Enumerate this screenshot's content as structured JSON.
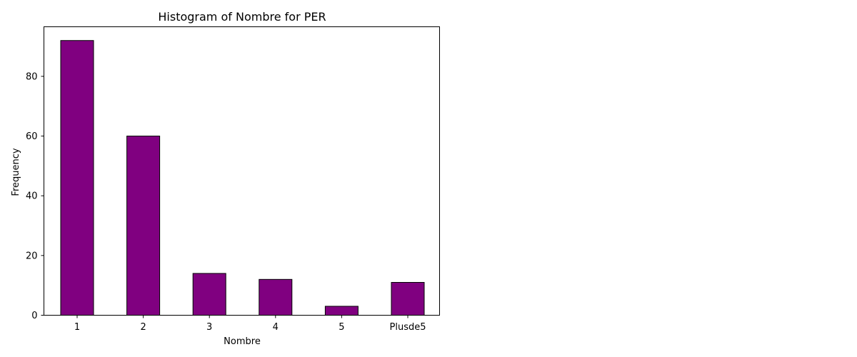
{
  "chart_data": {
    "type": "bar",
    "title": "Histogram of Nombre for PER",
    "xlabel": "Nombre",
    "ylabel": "Frequency",
    "categories": [
      "1",
      "2",
      "3",
      "4",
      "5",
      "Plusde5"
    ],
    "values": [
      92,
      60,
      14,
      12,
      3,
      11
    ],
    "ylim": [
      0,
      96.6
    ],
    "yticks": [
      0,
      20,
      40,
      60,
      80
    ],
    "bar_color": "#800080",
    "bar_edge_color": "#000000",
    "grid": false,
    "legend": "none"
  }
}
